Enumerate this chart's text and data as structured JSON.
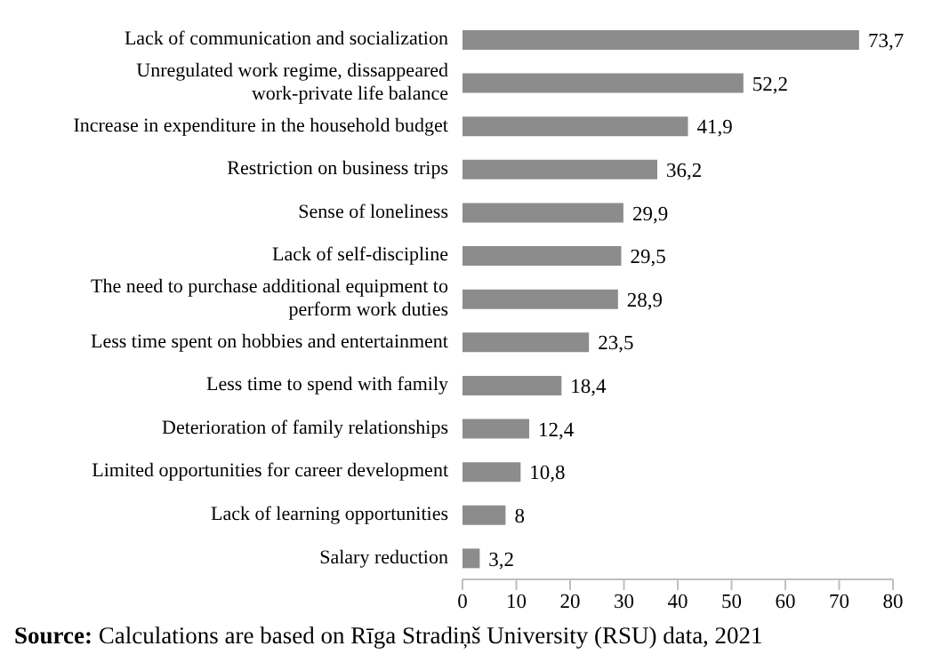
{
  "chart_data": {
    "type": "bar",
    "orientation": "horizontal",
    "categories": [
      "Lack of communication and socialization",
      "Unregulated work regime, dissappeared work-private life balance",
      "Increase in expenditure in the household budget",
      "Restriction on business trips",
      "Sense of loneliness",
      "Lack of self-discipline",
      "The need to purchase additional equipment to perform work duties",
      "Less time spent on hobbies and entertainment",
      "Less time to spend with family",
      "Deterioration of family relationships",
      "Limited opportunities for career development",
      "Lack of learning opportunities",
      "Salary reduction"
    ],
    "values": [
      73.7,
      52.2,
      41.9,
      36.2,
      29.9,
      29.5,
      28.9,
      23.5,
      18.4,
      12.4,
      10.8,
      8,
      3.2
    ],
    "value_labels": [
      "73,7",
      "52,2",
      "41,9",
      "36,2",
      "29,9",
      "29,5",
      "28,9",
      "23,5",
      "18,4",
      "12,4",
      "10,8",
      "8",
      "3,2"
    ],
    "color": "#8c8c8c",
    "xlim": [
      0,
      80
    ],
    "xticks": [
      0,
      10,
      20,
      30,
      40,
      50,
      60,
      70,
      80
    ],
    "annotations": [
      "Source: Calculations are based on Rīga Stradiņš University (RSU) data, 2021"
    ]
  }
}
